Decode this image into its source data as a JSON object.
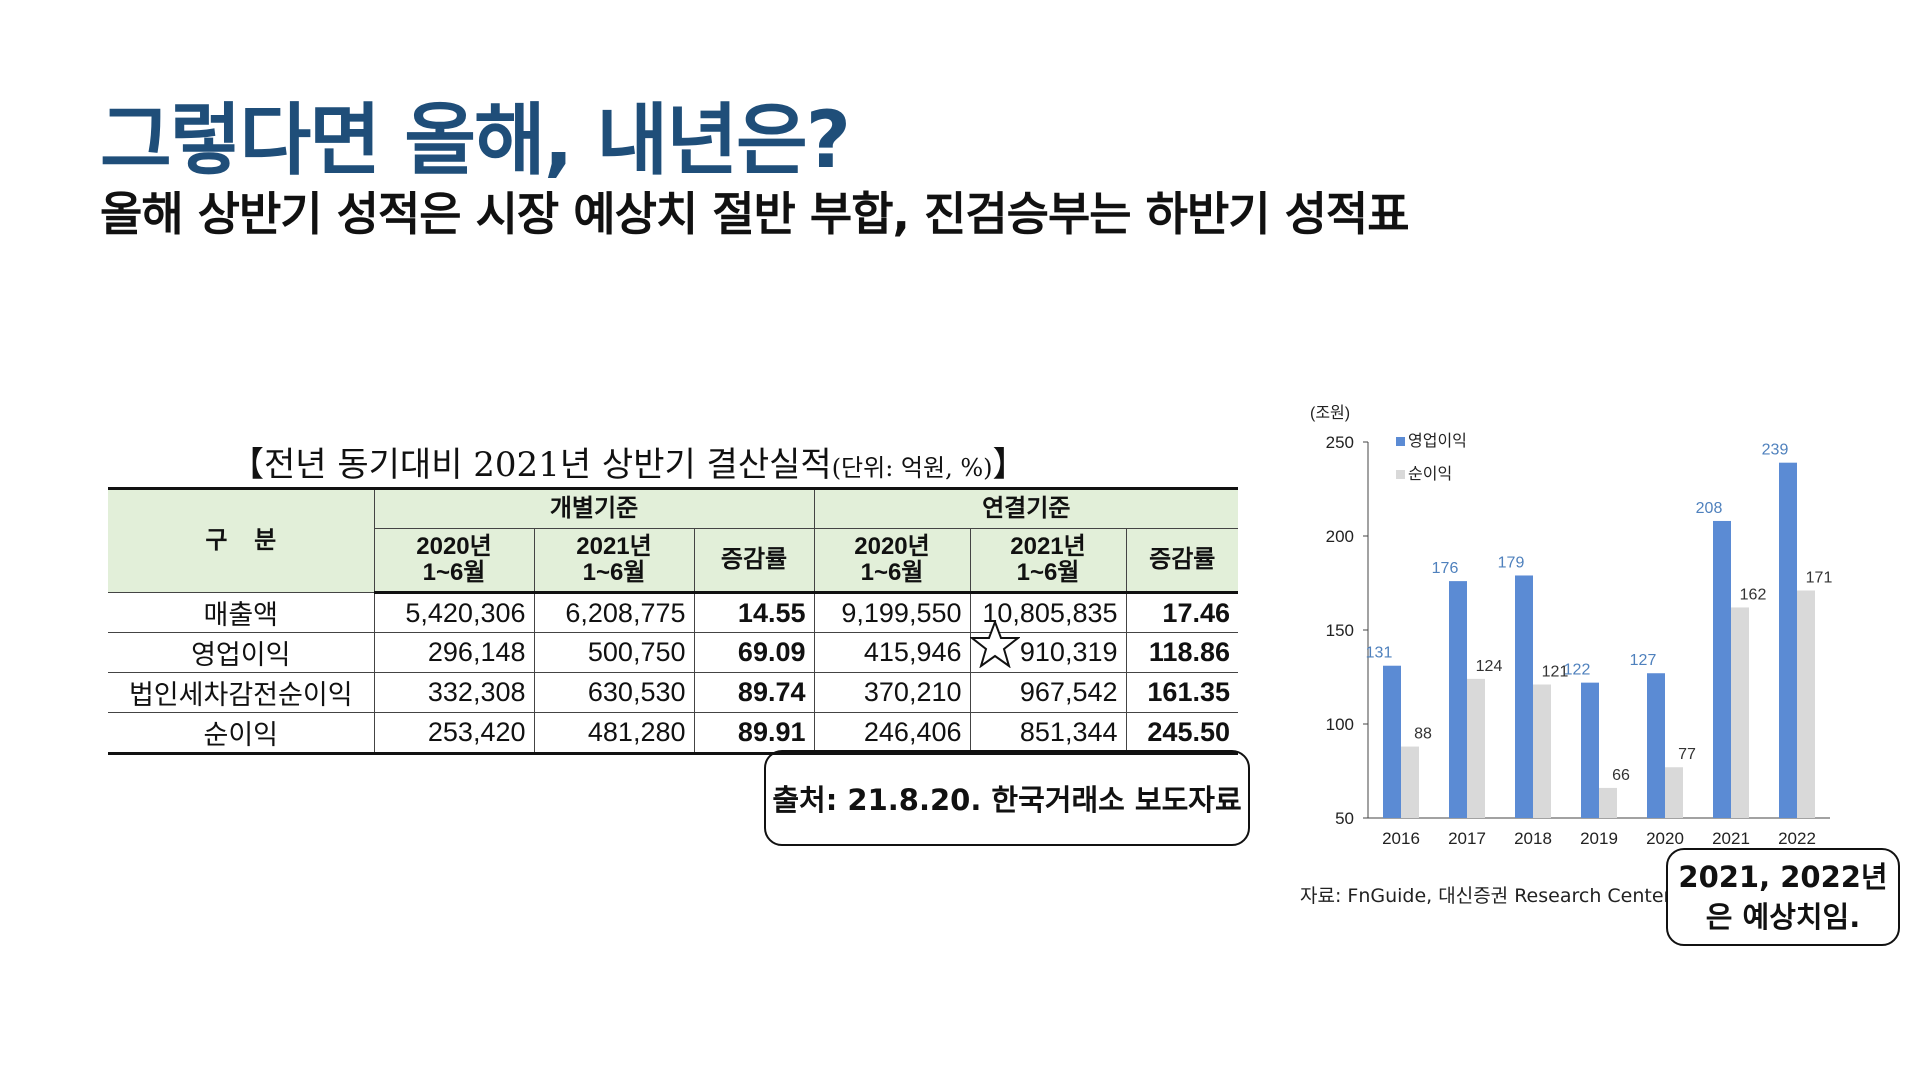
{
  "slide": {
    "title": "그렇다면 올해, 내년은?",
    "subtitle": "올해 상반기 성적은 시장 예상치 절반 부합, 진검승부는 하반기 성적표"
  },
  "table": {
    "caption": "【전년 동기대비 2021년 상반기 결산실적",
    "caption_unit": "(단위: 억원, %)",
    "caption_end": "】",
    "header": {
      "category": "구    분",
      "group_separate": "개별기준",
      "group_consolidated": "연결기준",
      "col_2020": "2020년",
      "col_2021": "2021년",
      "col_period": "1~6월",
      "col_change": "증감률"
    },
    "rows": [
      {
        "label": "매출액",
        "sep2020": "5,420,306",
        "sep2021": "6,208,775",
        "sepChg": "14.55",
        "con2020": "9,199,550",
        "con2021": "10,805,835",
        "conChg": "17.46"
      },
      {
        "label": "영업이익",
        "sep2020": "296,148",
        "sep2021": "500,750",
        "sepChg": "69.09",
        "con2020": "415,946",
        "con2021": "910,319",
        "conChg": "118.86"
      },
      {
        "label": "법인세차감전순이익",
        "sep2020": "332,308",
        "sep2021": "630,530",
        "sepChg": "89.74",
        "con2020": "370,210",
        "con2021": "967,542",
        "conChg": "161.35"
      },
      {
        "label": "순이익",
        "sep2020": "253,420",
        "sep2021": "481,280",
        "sepChg": "89.91",
        "con2020": "246,406",
        "con2021": "851,344",
        "conChg": "245.50"
      }
    ]
  },
  "source_note": "출처: 21.8.20. 한국거래소 보도자료",
  "forecast_note": {
    "line1": "2021, 2022년",
    "line2": "은 예상치임."
  },
  "colors": {
    "title": "#1f4e79",
    "operating_profit": "#5b8bd4",
    "net_income": "#d9d9d9",
    "header_fill": "#e2efd9",
    "value_label": "#4f81bd"
  },
  "chart_data": {
    "type": "bar",
    "ylabel": "(조원)",
    "ylim": [
      50,
      250
    ],
    "yticks": [
      50,
      100,
      150,
      200,
      250
    ],
    "categories": [
      "2016",
      "2017",
      "2018",
      "2019",
      "2020",
      "2021",
      "2022"
    ],
    "series": [
      {
        "name": "영업이익",
        "values": [
          131,
          176,
          179,
          122,
          127,
          208,
          239
        ]
      },
      {
        "name": "순이익",
        "values": [
          88,
          124,
          121,
          66,
          77,
          162,
          171
        ]
      }
    ],
    "legend_position": "top-left",
    "grid": false,
    "source": "자료: FnGuide, 대신증권 Research Center"
  }
}
